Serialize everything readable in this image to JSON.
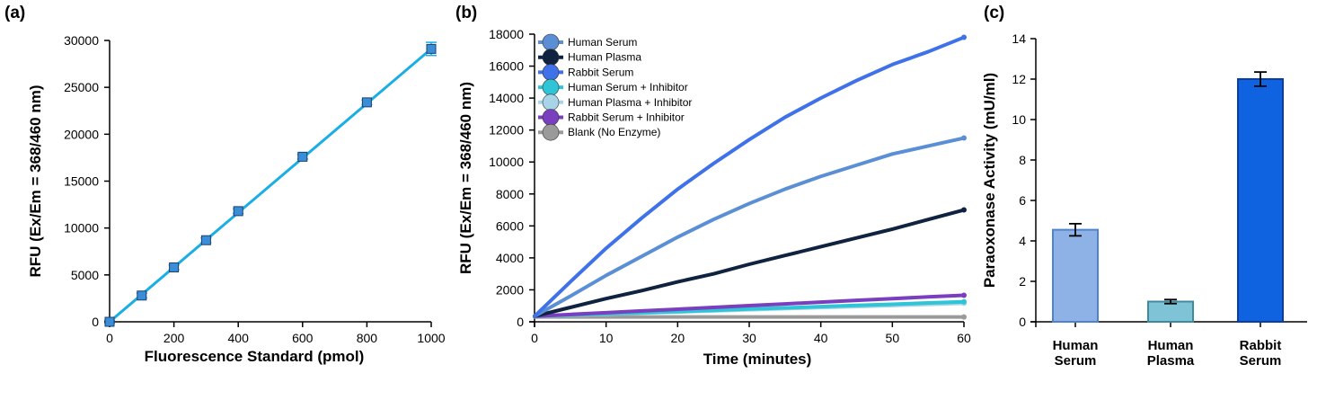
{
  "chart_data": [
    {
      "panel": "(a)",
      "type": "line",
      "xlabel": "Fluorescence Standard (pmol)",
      "ylabel": "RFU (Ex/Em = 368/460 nm)",
      "xlim": [
        0,
        1000
      ],
      "ylim": [
        0,
        30000
      ],
      "xticks": [
        0,
        200,
        400,
        600,
        800,
        1000
      ],
      "yticks": [
        0,
        5000,
        10000,
        15000,
        20000,
        25000,
        30000
      ],
      "x": [
        0,
        100,
        200,
        300,
        400,
        600,
        800,
        1000
      ],
      "y": [
        0,
        2800,
        5800,
        8700,
        11800,
        17600,
        23400,
        29100
      ],
      "yerr": [
        150,
        250,
        250,
        250,
        250,
        250,
        250,
        700
      ],
      "colors": {
        "line": "#1aaee5",
        "marker": "#3a8ed8"
      }
    },
    {
      "panel": "(b)",
      "type": "line",
      "xlabel": "Time (minutes)",
      "ylabel": "RFU (Ex/Em = 368/460 nm)",
      "xlim": [
        0,
        60
      ],
      "ylim": [
        0,
        18000
      ],
      "xticks": [
        0,
        10,
        20,
        30,
        40,
        50,
        60
      ],
      "yticks": [
        0,
        2000,
        4000,
        6000,
        8000,
        10000,
        12000,
        14000,
        16000,
        18000
      ],
      "x": [
        0,
        5,
        10,
        15,
        20,
        25,
        30,
        35,
        40,
        45,
        50,
        55,
        60
      ],
      "legend_position": "top-left",
      "series": [
        {
          "name": "Human Serum",
          "color": "#5a8fd6",
          "values": [
            350,
            1600,
            2900,
            4100,
            5300,
            6400,
            7400,
            8300,
            9100,
            9800,
            10500,
            11000,
            11500
          ]
        },
        {
          "name": "Human Plasma",
          "color": "#0f2340",
          "values": [
            350,
            900,
            1450,
            1950,
            2500,
            3000,
            3600,
            4150,
            4700,
            5250,
            5800,
            6400,
            7000
          ]
        },
        {
          "name": "Rabbit Serum",
          "color": "#3f72e8",
          "values": [
            350,
            2500,
            4600,
            6500,
            8300,
            9900,
            11400,
            12800,
            14000,
            15100,
            16100,
            16900,
            17800
          ]
        },
        {
          "name": "Human Serum + Inhibitor",
          "color": "#2fc4d6",
          "values": [
            350,
            420,
            500,
            570,
            640,
            720,
            800,
            870,
            950,
            1030,
            1100,
            1180,
            1250
          ]
        },
        {
          "name": "Human Plasma + Inhibitor",
          "color": "#a7d4e6",
          "values": [
            350,
            410,
            480,
            550,
            610,
            680,
            750,
            820,
            890,
            950,
            1020,
            1090,
            1160
          ]
        },
        {
          "name": "Rabbit Serum + Inhibitor",
          "color": "#7a3fbf",
          "values": [
            350,
            460,
            570,
            680,
            790,
            900,
            1010,
            1120,
            1230,
            1340,
            1450,
            1560,
            1660
          ]
        },
        {
          "name": "Blank (No Enzyme)",
          "color": "#9a9a9a",
          "values": [
            300,
            300,
            300,
            300,
            300,
            300,
            300,
            300,
            300,
            300,
            300,
            300,
            300
          ]
        }
      ]
    },
    {
      "panel": "(c)",
      "type": "bar",
      "ylabel": "Paraoxonase Activity (mU/ml)",
      "ylim": [
        0,
        14
      ],
      "yticks": [
        0,
        2,
        4,
        6,
        8,
        10,
        12,
        14
      ],
      "categories": [
        "Human Serum",
        "Human Plasma",
        "Rabbit Serum"
      ],
      "category_lines": [
        [
          "Human",
          "Serum"
        ],
        [
          "Human",
          "Plasma"
        ],
        [
          "Rabbit",
          "Serum"
        ]
      ],
      "values": [
        4.55,
        1.0,
        12.0
      ],
      "errors": [
        0.3,
        0.1,
        0.35
      ],
      "colors": [
        "#8eb1e6",
        "#7fc4d6",
        "#0f62e0"
      ],
      "edge_colors": [
        "#4f83c9",
        "#3f8a9c",
        "#0b3f9e"
      ]
    }
  ]
}
